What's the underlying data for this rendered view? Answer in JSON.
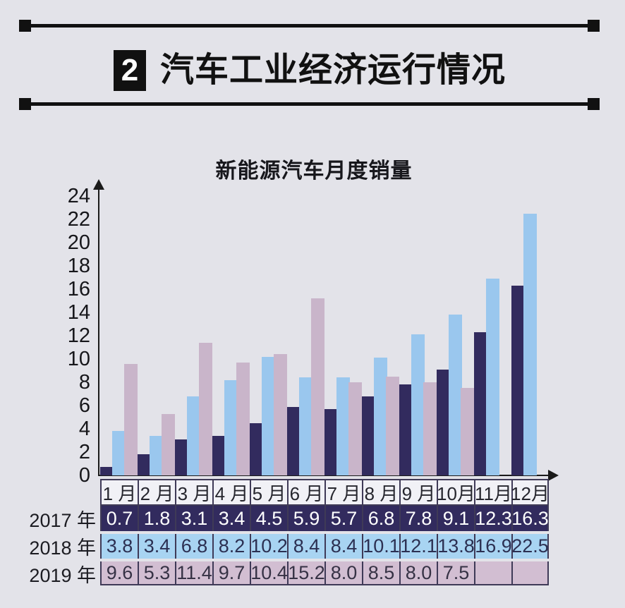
{
  "header": {
    "badge": "2",
    "title": "汽车工业经济运行情况"
  },
  "chart_data": {
    "type": "bar",
    "title": "新能源汽车月度销量",
    "categories": [
      "1 月",
      "2 月",
      "3 月",
      "4 月",
      "5 月",
      "6 月",
      "7 月",
      "8 月",
      "9 月",
      "10月",
      "11月",
      "12月"
    ],
    "series": [
      {
        "name": "2017 年",
        "color": "#322b5e",
        "row_bg": "#322b5e",
        "text_color": "#ffffff",
        "values": [
          0.7,
          1.8,
          3.1,
          3.4,
          4.5,
          5.9,
          5.7,
          6.8,
          7.8,
          9.1,
          12.3,
          16.3
        ]
      },
      {
        "name": "2018 年",
        "color": "#9ac7ee",
        "row_bg": "#a8d4f2",
        "text_color": "#2c3052",
        "values": [
          3.8,
          3.4,
          6.8,
          8.2,
          10.2,
          8.4,
          8.4,
          10.1,
          12.1,
          13.8,
          16.9,
          22.5
        ]
      },
      {
        "name": "2019 年",
        "color": "#c9b5ca",
        "row_bg": "#d2bed2",
        "text_color": "#363245",
        "values": [
          9.6,
          5.3,
          11.4,
          9.7,
          10.4,
          15.2,
          8.0,
          8.5,
          8.0,
          7.5,
          null,
          null
        ]
      }
    ],
    "ylim": [
      0,
      24
    ],
    "yticks": [
      0,
      2,
      4,
      6,
      8,
      10,
      12,
      14,
      16,
      18,
      20,
      22,
      24
    ],
    "xlabel": "",
    "ylabel": "",
    "grid": false,
    "legend_position": "table-row-labels"
  },
  "colors": {
    "page_bg": "#e3e3e9",
    "rule": "#111111",
    "badge_bg": "#111111",
    "badge_text": "#ffffff",
    "title_text": "#111111",
    "axis": "#1a1a1a",
    "tick_text": "#16161a",
    "table_border": "#3f3a57",
    "table_header_bg": "#f1f1f6",
    "table_header_text": "#26262e",
    "row_label_text": "#1c1c22"
  }
}
